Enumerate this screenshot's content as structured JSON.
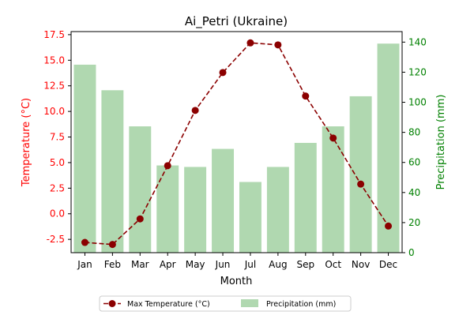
{
  "chart_data": {
    "type": "bar+line",
    "title": "Ai_Petri (Ukraine)",
    "xlabel": "Month",
    "ylabel_left": "Temperature (°C)",
    "ylabel_right": "Precipitation (mm)",
    "categories": [
      "Jan",
      "Feb",
      "Mar",
      "Apr",
      "May",
      "Jun",
      "Jul",
      "Aug",
      "Sep",
      "Oct",
      "Nov",
      "Dec"
    ],
    "series": [
      {
        "name": "Max Temperature (°C)",
        "type": "line",
        "axis": "left",
        "color": "#8b0000",
        "line_style": "dashed",
        "marker": "circle",
        "values": [
          -2.8,
          -3.0,
          -0.5,
          4.7,
          10.1,
          13.8,
          16.7,
          16.5,
          11.5,
          7.4,
          2.9,
          -1.2
        ]
      },
      {
        "name": "Precipitation (mm)",
        "type": "bar",
        "axis": "right",
        "color": "#b0d8b0",
        "values": [
          125,
          108,
          84,
          58,
          57,
          69,
          47,
          57,
          73,
          84,
          104,
          139
        ]
      }
    ],
    "ylim_left": [
      -3.8,
      17.8
    ],
    "ylim_right": [
      0,
      147
    ],
    "yticks_left": [
      "-2.5",
      "0.0",
      "2.5",
      "5.0",
      "7.5",
      "10.0",
      "12.5",
      "15.0",
      "17.5"
    ],
    "yticks_right": [
      "0",
      "20",
      "40",
      "60",
      "80",
      "100",
      "120",
      "140"
    ],
    "left_axis_color": "#ff0000",
    "right_axis_color": "#008000",
    "grid": false,
    "legend_position": "bottom-center"
  }
}
